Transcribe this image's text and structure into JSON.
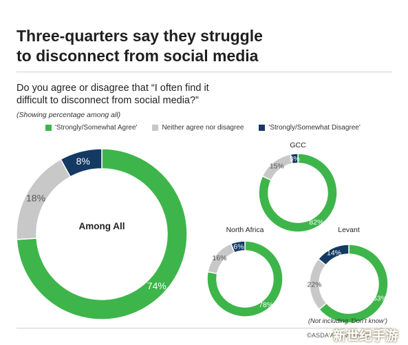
{
  "title_line1": "Three-quarters say they struggle",
  "title_line2": "to disconnect from social media",
  "question_line1": "Do you agree or disagree that “I often find it",
  "question_line2": "difficult to disconnect from social media?”",
  "note": "(Showing percentage among all)",
  "legend": [
    {
      "label": "'Strongly/Somewhat Agree'",
      "color": "#3db54a"
    },
    {
      "label": "Neither agree nor disagree",
      "color": "#c8c8c8"
    },
    {
      "label": "'Strongly/Somewhat Disagree'",
      "color": "#143a63"
    }
  ],
  "footnote": "(Not including ‘Don’t know’)",
  "source": "©ASDA’A BCW ARAB",
  "watermark": "新世纪手游",
  "chart_data": [
    {
      "type": "pie",
      "title": "Among All",
      "labels": [
        "'Strongly/Somewhat Agree'",
        "Neither agree nor disagree",
        "'Strongly/Somewhat Disagree'"
      ],
      "values": [
        74,
        18,
        8
      ],
      "value_labels": [
        "74%",
        "18%",
        "8%"
      ],
      "colors": [
        "#3db54a",
        "#c8c8c8",
        "#143a63"
      ]
    },
    {
      "type": "pie",
      "title": "GCC",
      "labels": [
        "'Strongly/Somewhat Agree'",
        "Neither agree nor disagree",
        "'Strongly/Somewhat Disagree'"
      ],
      "values": [
        82,
        15,
        3
      ],
      "value_labels": [
        "82%",
        "15%",
        "3%"
      ],
      "colors": [
        "#3db54a",
        "#c8c8c8",
        "#143a63"
      ]
    },
    {
      "type": "pie",
      "title": "North Africa",
      "labels": [
        "'Strongly/Somewhat Agree'",
        "Neither agree nor disagree",
        "'Strongly/Somewhat Disagree'"
      ],
      "values": [
        78,
        16,
        6
      ],
      "value_labels": [
        "78%",
        "16%",
        "6%"
      ],
      "colors": [
        "#3db54a",
        "#c8c8c8",
        "#143a63"
      ]
    },
    {
      "type": "pie",
      "title": "Levant",
      "labels": [
        "'Strongly/Somewhat Agree'",
        "Neither agree nor disagree",
        "'Strongly/Somewhat Disagree'"
      ],
      "values": [
        63,
        22,
        14
      ],
      "value_labels": [
        "63%",
        "22%",
        "14%"
      ],
      "colors": [
        "#3db54a",
        "#c8c8c8",
        "#143a63"
      ]
    }
  ]
}
